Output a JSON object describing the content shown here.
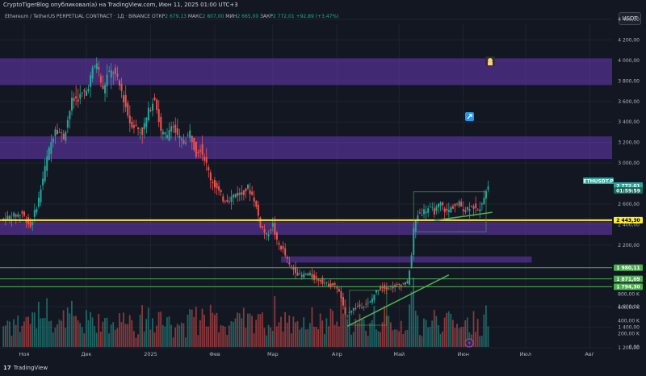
{
  "header": {
    "caption": "CryptoTigerBlog опубликовал(а) на TradingView.com, Июн 11, 2025 01:00 UTC+3",
    "symbol": "Ethereum / TetherUS PERPETUAL CONTRACT · 1Д · BINANCE",
    "ohlc": [
      {
        "label": "ОТКР",
        "value": "2 679,13"
      },
      {
        "label": "МАКС",
        "value": "2 807,00"
      },
      {
        "label": "МИН",
        "value": "2 665,00"
      },
      {
        "label": "ЗАКР",
        "value": "2 772,01"
      }
    ],
    "change": "+92,89 (+3,47%)",
    "currency": "USDT"
  },
  "footer": {
    "logo": "17",
    "brand": "TradingView"
  },
  "colors": {
    "background": "#131722",
    "up": "#26a69a",
    "down": "#ef5350",
    "zone": "#673ab7",
    "yellow_line": "#ffeb3b",
    "green_line": "#4caf50",
    "grid": "#1f2330"
  },
  "chart_data": {
    "type": "candlestick",
    "title": "Ethereum / TetherUS PERPETUAL CONTRACT",
    "timeframe": "1Д",
    "exchange": "BINANCE",
    "x_labels": [
      "Ноя",
      "Дек",
      "2025",
      "Фев",
      "Мар",
      "Апр",
      "Май",
      "Июн",
      "Июл",
      "Авг"
    ],
    "x_label_days": [
      0,
      30,
      61,
      92,
      120,
      151,
      181,
      212,
      242,
      273
    ],
    "price_axis": {
      "ylim": [
        1200,
        4400
      ],
      "ticks": [
        1200,
        1400,
        1600,
        1800,
        2200,
        2400,
        2600,
        3000,
        3200,
        3400,
        3600,
        3800,
        4000,
        4200,
        4400
      ],
      "tick_labels": [
        "1 200,00",
        "1 400,00",
        "1 600,00",
        "1 800,00",
        "2 200,00",
        "2 400,00",
        "2 600,00",
        "3 000,00",
        "3 200,00",
        "3 400,00",
        "3 600,00",
        "3 800,00",
        "4 000,00",
        "4 200,00",
        "4 400,00"
      ]
    },
    "volume_axis": {
      "ylim": [
        0,
        1100
      ],
      "ticks": [
        0,
        200,
        400,
        600,
        800,
        1000
      ],
      "tick_labels": [
        "0,00",
        "200,00 K",
        "400,00 K",
        "600,00 K",
        "800,00 K",
        "1,000 M"
      ]
    },
    "price_tags": [
      {
        "text": "ETHUSDT.P",
        "price": 2772.01,
        "kind": "symbol"
      },
      {
        "text": "2 772,01",
        "price": 2772.01,
        "kind": "last"
      },
      {
        "text": "01:59:59",
        "price": 2772.01,
        "kind": "countdown"
      },
      {
        "text": "2 443,30",
        "price": 2443.3,
        "kind": "yellow"
      },
      {
        "text": "1 980,11",
        "price": 1980.11,
        "kind": "green"
      },
      {
        "text": "1 871,09",
        "price": 1871.09,
        "kind": "green"
      },
      {
        "text": "1 794,30",
        "price": 1794.3,
        "kind": "green"
      }
    ],
    "zones": [
      {
        "from": 3760,
        "to": 4020,
        "start_day": 0
      },
      {
        "from": 3040,
        "to": 3260,
        "start_day": 0
      },
      {
        "from": 2300,
        "to": 2430,
        "start_day": 0
      },
      {
        "from": 2030,
        "to": 2090,
        "start_day": 124
      }
    ],
    "horizontal_lines": [
      {
        "price": 2443.3,
        "color": "#ffeb3b",
        "start_day": 0
      },
      {
        "price": 1980.11,
        "color": "#4caf50",
        "start_day": 0
      },
      {
        "price": 1871.09,
        "color": "#4caf50",
        "start_day": 0
      },
      {
        "price": 1794.3,
        "color": "#4caf50",
        "start_day": 0
      }
    ],
    "trend_lines": [
      {
        "from": [
          156,
          1410
        ],
        "to": [
          205,
          1910
        ]
      },
      {
        "from": [
          198,
          2440
        ],
        "to": [
          226,
          2520
        ]
      }
    ],
    "ranges": [
      {
        "from_day": 157,
        "to_day": 175,
        "low": 1420,
        "high": 1760
      },
      {
        "from_day": 188,
        "to_day": 223,
        "low": 2330,
        "high": 2720
      }
    ],
    "anchors": [
      [
        -10,
        2450
      ],
      [
        0,
        2510
      ],
      [
        4,
        2380
      ],
      [
        8,
        2650
      ],
      [
        12,
        3050
      ],
      [
        16,
        3350
      ],
      [
        20,
        3250
      ],
      [
        24,
        3600
      ],
      [
        28,
        3650
      ],
      [
        31,
        3700
      ],
      [
        34,
        3900
      ],
      [
        36,
        3980
      ],
      [
        39,
        3700
      ],
      [
        41,
        3850
      ],
      [
        44,
        3900
      ],
      [
        48,
        3700
      ],
      [
        52,
        3400
      ],
      [
        55,
        3350
      ],
      [
        58,
        3300
      ],
      [
        61,
        3500
      ],
      [
        64,
        3650
      ],
      [
        67,
        3300
      ],
      [
        70,
        3250
      ],
      [
        72,
        3400
      ],
      [
        75,
        3250
      ],
      [
        78,
        3200
      ],
      [
        81,
        3300
      ],
      [
        84,
        3100
      ],
      [
        86,
        3150
      ],
      [
        88,
        3050
      ],
      [
        91,
        2850
      ],
      [
        94,
        2750
      ],
      [
        97,
        2650
      ],
      [
        100,
        2650
      ],
      [
        103,
        2700
      ],
      [
        106,
        2700
      ],
      [
        109,
        2760
      ],
      [
        112,
        2650
      ],
      [
        115,
        2400
      ],
      [
        118,
        2290
      ],
      [
        121,
        2400
      ],
      [
        123,
        2230
      ],
      [
        126,
        2150
      ],
      [
        129,
        2000
      ],
      [
        132,
        1950
      ],
      [
        134,
        1900
      ],
      [
        138,
        1920
      ],
      [
        141,
        1880
      ],
      [
        144,
        1860
      ],
      [
        147,
        1820
      ],
      [
        150,
        1810
      ],
      [
        152,
        1790
      ],
      [
        154,
        1680
      ],
      [
        156,
        1510
      ],
      [
        158,
        1560
      ],
      [
        160,
        1580
      ],
      [
        162,
        1600
      ],
      [
        165,
        1620
      ],
      [
        168,
        1640
      ],
      [
        170,
        1720
      ],
      [
        172,
        1780
      ],
      [
        174,
        1790
      ],
      [
        177,
        1790
      ],
      [
        180,
        1800
      ],
      [
        183,
        1820
      ],
      [
        186,
        1830
      ],
      [
        188,
        2100
      ],
      [
        189,
        2350
      ],
      [
        191,
        2500
      ],
      [
        193,
        2520
      ],
      [
        196,
        2560
      ],
      [
        199,
        2530
      ],
      [
        202,
        2600
      ],
      [
        205,
        2520
      ],
      [
        208,
        2580
      ],
      [
        211,
        2600
      ],
      [
        214,
        2540
      ],
      [
        217,
        2600
      ],
      [
        220,
        2520
      ],
      [
        223,
        2680
      ],
      [
        225,
        2772
      ]
    ],
    "last_price": 2772.01
  }
}
